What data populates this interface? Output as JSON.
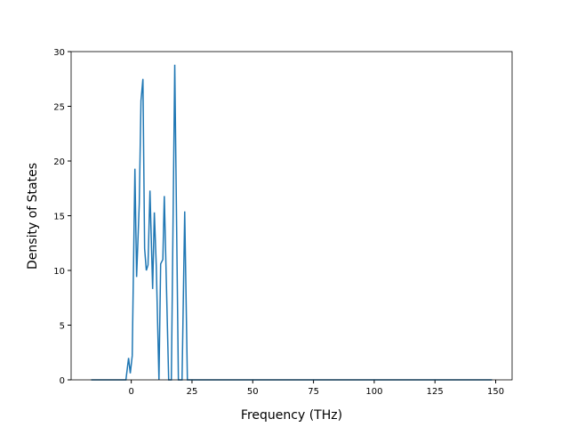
{
  "chart_data": {
    "type": "line",
    "x_label": "Frequency (THz)",
    "y_label": "Density of States",
    "series": [
      {
        "color": "#1f77b4",
        "x": [
          -16.5,
          -2.2,
          -1.1,
          -0.4,
          0.4,
          1.5,
          2.2,
          3.3,
          4.0,
          4.8,
          5.5,
          6.2,
          6.9,
          7.7,
          8.8,
          9.5,
          10.3,
          11.4,
          12.1,
          13.0,
          13.6,
          15.4,
          16.5,
          17.9,
          19.4,
          20.9,
          22.0,
          23.1,
          148.5
        ],
        "values": [
          0,
          0,
          2.0,
          0.6,
          2.2,
          19.3,
          9.4,
          16.1,
          25.5,
          27.5,
          12.0,
          10.0,
          10.5,
          17.3,
          8.3,
          15.3,
          10.4,
          0,
          10.6,
          11.0,
          16.8,
          0,
          0,
          28.8,
          0,
          0,
          15.4,
          0,
          0
        ]
      }
    ],
    "xlim": [
      -24.75,
      156.75
    ],
    "xticks": [
      0,
      25,
      50,
      75,
      100,
      125,
      150
    ],
    "ylim": [
      0,
      30
    ],
    "yticks": [
      0,
      5,
      10,
      15,
      20,
      25,
      30
    ]
  }
}
